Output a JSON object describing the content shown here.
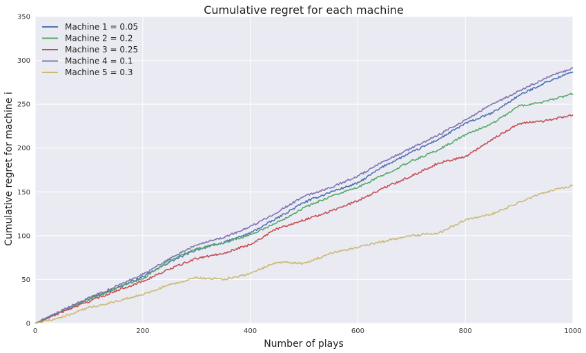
{
  "chart_data": {
    "type": "line",
    "title": "Cumulative regret for each machine",
    "xlabel": "Number of plays",
    "ylabel": "Cumulative regret for machine i",
    "xlim": [
      0,
      1000
    ],
    "ylim": [
      0,
      350
    ],
    "xticks": [
      0,
      200,
      400,
      600,
      800,
      1000
    ],
    "yticks": [
      0,
      50,
      100,
      150,
      200,
      250,
      300,
      350
    ],
    "grid": true,
    "legend_position": "top-left",
    "background": "#EAEAF2",
    "series": [
      {
        "name": "Machine 1 = 0.05",
        "color": "#4C72B0",
        "x": [
          0,
          50,
          100,
          150,
          200,
          250,
          300,
          350,
          400,
          450,
          500,
          550,
          600,
          650,
          700,
          750,
          800,
          850,
          900,
          950,
          1000
        ],
        "y": [
          0,
          14,
          28,
          40,
          53,
          70,
          84,
          92,
          103,
          120,
          138,
          150,
          160,
          180,
          195,
          210,
          228,
          240,
          260,
          275,
          287
        ]
      },
      {
        "name": "Machine 2 = 0.2",
        "color": "#55A868",
        "x": [
          0,
          50,
          100,
          150,
          200,
          250,
          300,
          350,
          400,
          450,
          500,
          550,
          600,
          650,
          700,
          750,
          800,
          850,
          900,
          950,
          1000
        ],
        "y": [
          0,
          14,
          27,
          40,
          51,
          72,
          85,
          92,
          101,
          115,
          132,
          145,
          155,
          170,
          185,
          198,
          215,
          228,
          248,
          253,
          262
        ]
      },
      {
        "name": "Machine 3 = 0.25",
        "color": "#C44E52",
        "x": [
          0,
          50,
          100,
          150,
          200,
          250,
          300,
          350,
          400,
          450,
          500,
          550,
          600,
          650,
          700,
          750,
          800,
          850,
          900,
          950,
          1000
        ],
        "y": [
          0,
          13,
          25,
          37,
          48,
          62,
          74,
          80,
          90,
          108,
          118,
          128,
          140,
          155,
          168,
          183,
          190,
          210,
          228,
          231,
          238
        ]
      },
      {
        "name": "Machine 4 = 0.1",
        "color": "#8172B2",
        "x": [
          0,
          50,
          100,
          150,
          200,
          250,
          300,
          350,
          400,
          450,
          500,
          550,
          600,
          650,
          700,
          750,
          800,
          850,
          900,
          950,
          1000
        ],
        "y": [
          0,
          15,
          29,
          42,
          56,
          74,
          90,
          98,
          110,
          127,
          145,
          155,
          168,
          185,
          200,
          215,
          232,
          250,
          265,
          280,
          291
        ]
      },
      {
        "name": "Machine 5 = 0.3",
        "color": "#CCB974",
        "x": [
          0,
          50,
          100,
          150,
          200,
          250,
          300,
          350,
          400,
          450,
          500,
          550,
          600,
          650,
          700,
          750,
          800,
          850,
          900,
          950,
          1000
        ],
        "y": [
          0,
          7,
          18,
          25,
          33,
          44,
          52,
          50,
          57,
          70,
          68,
          80,
          87,
          94,
          100,
          103,
          118,
          125,
          138,
          150,
          157
        ]
      }
    ]
  }
}
